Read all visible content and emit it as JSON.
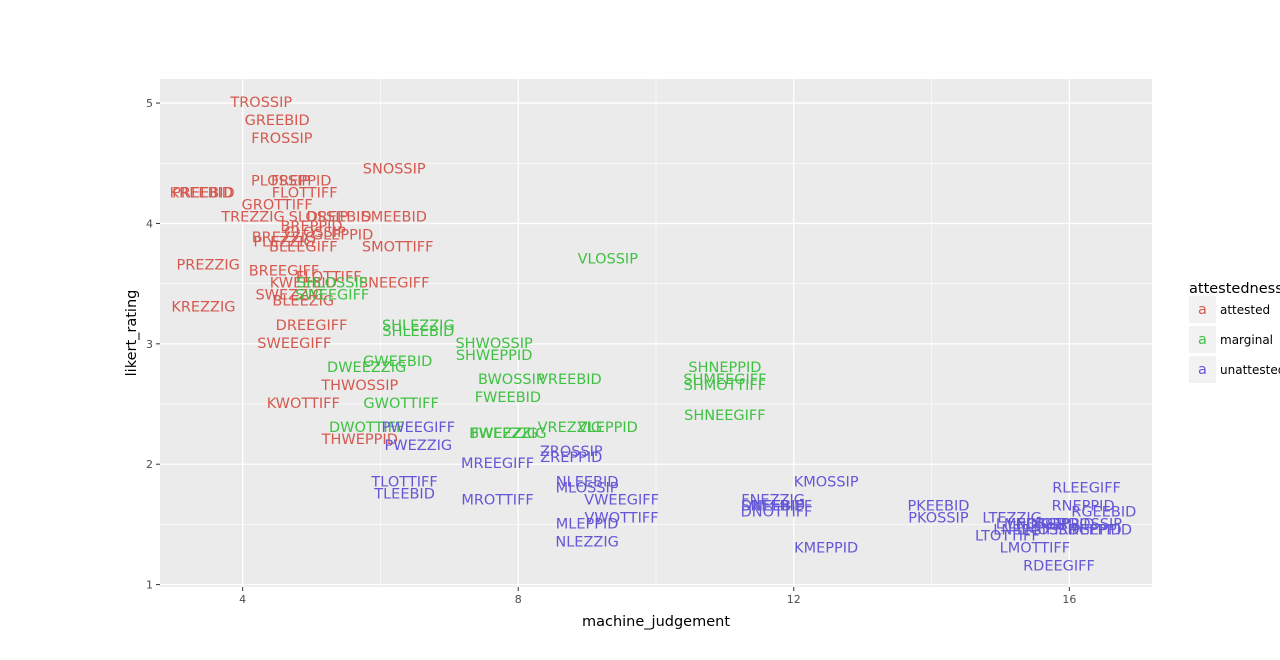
{
  "chart_data": {
    "type": "scatter",
    "mark": "text",
    "title": "",
    "xlabel": "machine_judgement",
    "ylabel": "likert_rating",
    "xlim": [
      2.8,
      17.2
    ],
    "ylim": [
      0.98,
      5.2
    ],
    "x_ticks": [
      4,
      8,
      12,
      16
    ],
    "y_ticks": [
      1,
      2,
      3,
      4,
      5
    ],
    "grid": true,
    "legend": {
      "title": "attestedness",
      "glyph": "a",
      "position": "right"
    },
    "series": [
      {
        "name": "attested",
        "color": "#d6584e",
        "points": [
          {
            "label": "TROSSIP",
            "x": 4.27,
            "y": 5.0
          },
          {
            "label": "GREEBID",
            "x": 4.5,
            "y": 4.85
          },
          {
            "label": "FROSSIP",
            "x": 4.57,
            "y": 4.7
          },
          {
            "label": "SNOSSIP",
            "x": 6.2,
            "y": 4.45
          },
          {
            "label": "PLOSSIP",
            "x": 4.55,
            "y": 4.35
          },
          {
            "label": "FREPPID",
            "x": 4.85,
            "y": 4.35
          },
          {
            "label": "KREEBID",
            "x": 3.4,
            "y": 4.25
          },
          {
            "label": "PREEBID",
            "x": 3.43,
            "y": 4.25
          },
          {
            "label": "FLOTTIFF",
            "x": 4.9,
            "y": 4.25
          },
          {
            "label": "GROTTIFF",
            "x": 4.5,
            "y": 4.15
          },
          {
            "label": "TREZZIG",
            "x": 4.15,
            "y": 4.05
          },
          {
            "label": "SLOSSIP",
            "x": 5.1,
            "y": 4.05
          },
          {
            "label": "DREEBID",
            "x": 5.4,
            "y": 4.05
          },
          {
            "label": "SMEEBID",
            "x": 6.2,
            "y": 4.05
          },
          {
            "label": "BREPPID",
            "x": 5.0,
            "y": 3.97
          },
          {
            "label": "GLOSSIP",
            "x": 5.05,
            "y": 3.92
          },
          {
            "label": "BREZZIG",
            "x": 4.6,
            "y": 3.88
          },
          {
            "label": "GLEPPID",
            "x": 5.45,
            "y": 3.9
          },
          {
            "label": "PLEZZIG",
            "x": 4.6,
            "y": 3.84
          },
          {
            "label": "BLEEGIFF",
            "x": 4.88,
            "y": 3.8
          },
          {
            "label": "SMOTTIFF",
            "x": 6.25,
            "y": 3.8
          },
          {
            "label": "PREZZIG",
            "x": 3.5,
            "y": 3.65
          },
          {
            "label": "BREEGIFF",
            "x": 4.6,
            "y": 3.6
          },
          {
            "label": "FLOTTIFF",
            "x": 5.25,
            "y": 3.55
          },
          {
            "label": "KWEEBID",
            "x": 4.88,
            "y": 3.5
          },
          {
            "label": "SNEEGIFF",
            "x": 6.2,
            "y": 3.5
          },
          {
            "label": "SWEZZIG",
            "x": 4.68,
            "y": 3.4
          },
          {
            "label": "BLEEZIG",
            "x": 4.88,
            "y": 3.35
          },
          {
            "label": "KREZZIG",
            "x": 3.43,
            "y": 3.3
          },
          {
            "label": "DREEGIFF",
            "x": 5.0,
            "y": 3.15
          },
          {
            "label": "SWEEGIFF",
            "x": 4.75,
            "y": 3.0
          },
          {
            "label": "THWOSSIP",
            "x": 5.7,
            "y": 2.65
          },
          {
            "label": "KWOTTIFF",
            "x": 4.88,
            "y": 2.5
          },
          {
            "label": "THWEPPID",
            "x": 5.7,
            "y": 2.2
          }
        ]
      },
      {
        "name": "marginal",
        "color": "#3fc242",
        "points": [
          {
            "label": "VLOSSIP",
            "x": 9.3,
            "y": 3.7
          },
          {
            "label": "SHLOSSIP",
            "x": 5.3,
            "y": 3.5
          },
          {
            "label": "SWEEGIFF",
            "x": 5.3,
            "y": 3.4
          },
          {
            "label": "SHLEZZIG",
            "x": 6.55,
            "y": 3.15
          },
          {
            "label": "SHLEEBID",
            "x": 6.55,
            "y": 3.1
          },
          {
            "label": "SHWOSSIP",
            "x": 7.65,
            "y": 3.0
          },
          {
            "label": "SHWEPPID",
            "x": 7.65,
            "y": 2.9
          },
          {
            "label": "GWEEBID",
            "x": 6.25,
            "y": 2.85
          },
          {
            "label": "DWEEZZIG",
            "x": 5.8,
            "y": 2.8
          },
          {
            "label": "SHNEPPID",
            "x": 11.0,
            "y": 2.8
          },
          {
            "label": "SHMEEGIFF",
            "x": 11.0,
            "y": 2.7
          },
          {
            "label": "SHMOTTIFF",
            "x": 11.0,
            "y": 2.65
          },
          {
            "label": "BWOSSIP",
            "x": 7.9,
            "y": 2.7
          },
          {
            "label": "VREEBID",
            "x": 8.75,
            "y": 2.7
          },
          {
            "label": "FWEEBID",
            "x": 7.85,
            "y": 2.55
          },
          {
            "label": "GWOTTIFF",
            "x": 6.3,
            "y": 2.5
          },
          {
            "label": "SHNEEGIFF",
            "x": 11.0,
            "y": 2.4
          },
          {
            "label": "DWOTTIFF",
            "x": 5.8,
            "y": 2.3
          },
          {
            "label": "VREZZIG",
            "x": 8.75,
            "y": 2.3
          },
          {
            "label": "VLEPPID",
            "x": 9.3,
            "y": 2.3
          },
          {
            "label": "BWEEZZIG",
            "x": 7.85,
            "y": 2.25
          },
          {
            "label": "FWEZZIG",
            "x": 7.8,
            "y": 2.25
          }
        ]
      },
      {
        "name": "unattested",
        "color": "#6357d7",
        "points": [
          {
            "label": "PWEEGIFF",
            "x": 6.55,
            "y": 2.3
          },
          {
            "label": "PWEZZIG",
            "x": 6.55,
            "y": 2.15
          },
          {
            "label": "ZROSSIP",
            "x": 8.77,
            "y": 2.1
          },
          {
            "label": "ZREPPID",
            "x": 8.77,
            "y": 2.05
          },
          {
            "label": "MREEGIFF",
            "x": 7.7,
            "y": 2.0
          },
          {
            "label": "KMOSSIP",
            "x": 12.47,
            "y": 1.85
          },
          {
            "label": "TLOTTIFF",
            "x": 6.35,
            "y": 1.85
          },
          {
            "label": "NLEEBID",
            "x": 9.0,
            "y": 1.85
          },
          {
            "label": "MLOSSIP",
            "x": 9.0,
            "y": 1.8
          },
          {
            "label": "TLEEBID",
            "x": 6.35,
            "y": 1.75
          },
          {
            "label": "MROTTIFF",
            "x": 7.7,
            "y": 1.7
          },
          {
            "label": "VWEEGIFF",
            "x": 9.5,
            "y": 1.7
          },
          {
            "label": "FNEZZIG",
            "x": 11.7,
            "y": 1.7
          },
          {
            "label": "SNEEBID",
            "x": 11.7,
            "y": 1.65
          },
          {
            "label": "DNEEBIFF",
            "x": 11.75,
            "y": 1.65
          },
          {
            "label": "DNOTTIFF",
            "x": 11.75,
            "y": 1.6
          },
          {
            "label": "RLEEGIFF",
            "x": 16.25,
            "y": 1.8
          },
          {
            "label": "PKEEBID",
            "x": 14.1,
            "y": 1.65
          },
          {
            "label": "RNEPPID",
            "x": 16.2,
            "y": 1.65
          },
          {
            "label": "RGEEBID",
            "x": 16.5,
            "y": 1.6
          },
          {
            "label": "PKOSSIP",
            "x": 14.1,
            "y": 1.55
          },
          {
            "label": "LTEZZIG",
            "x": 15.17,
            "y": 1.55
          },
          {
            "label": "VWOTTIFF",
            "x": 9.5,
            "y": 1.55
          },
          {
            "label": "LMEEBID",
            "x": 15.4,
            "y": 1.5
          },
          {
            "label": "LNOSSIP",
            "x": 15.55,
            "y": 1.5
          },
          {
            "label": "NGEPPID",
            "x": 15.9,
            "y": 1.5
          },
          {
            "label": "RDOSSIP",
            "x": 16.3,
            "y": 1.5
          },
          {
            "label": "MLEPPID",
            "x": 9.0,
            "y": 1.5
          },
          {
            "label": "LNEEGIFF",
            "x": 15.4,
            "y": 1.45
          },
          {
            "label": "LMOSSIP",
            "x": 15.7,
            "y": 1.45
          },
          {
            "label": "RDEPPID",
            "x": 16.3,
            "y": 1.45
          },
          {
            "label": "RGEPPID",
            "x": 16.45,
            "y": 1.45
          },
          {
            "label": "LTOTTIFF",
            "x": 15.1,
            "y": 1.4
          },
          {
            "label": "NLEZZIG",
            "x": 9.0,
            "y": 1.35
          },
          {
            "label": "LMOTTIFF",
            "x": 15.5,
            "y": 1.3
          },
          {
            "label": "KMEPPID",
            "x": 12.47,
            "y": 1.3
          },
          {
            "label": "RDEEGIFF",
            "x": 15.85,
            "y": 1.15
          }
        ]
      }
    ]
  },
  "background": "#ebebeb",
  "grid_color": "#ffffff"
}
